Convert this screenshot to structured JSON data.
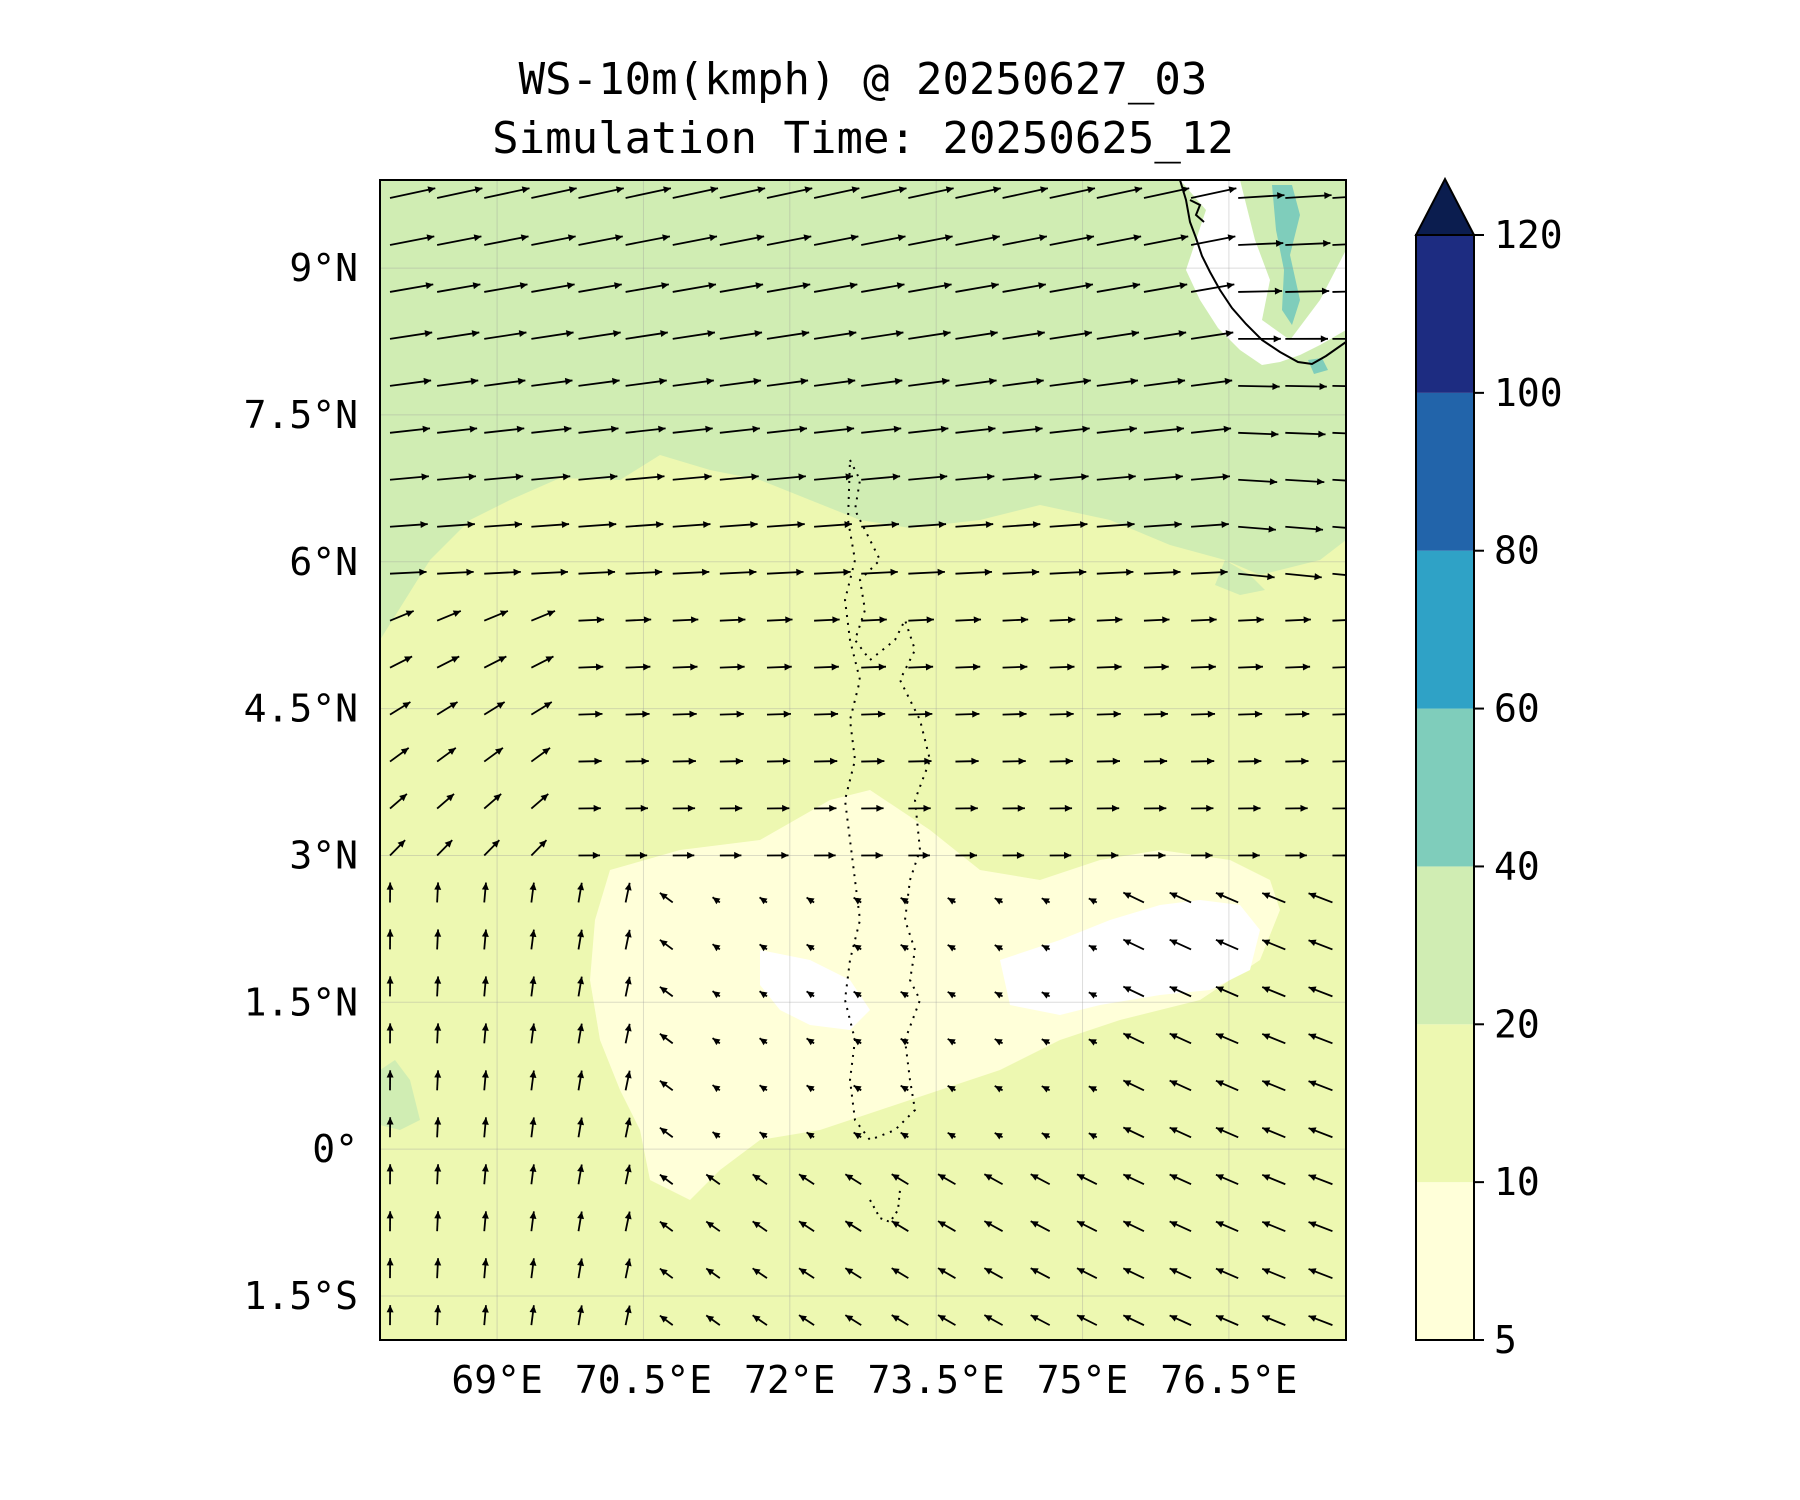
{
  "title": {
    "line1": "WS-10m(kmph) @ 20250627_03",
    "line2": "Simulation Time: 20250625_12"
  },
  "map": {
    "x_range_deg_e": [
      67.8,
      77.7
    ],
    "y_range_deg_n": [
      -1.95,
      9.9
    ],
    "x_ticks": [
      {
        "value": 69,
        "label": "69°E"
      },
      {
        "value": 70.5,
        "label": "70.5°E"
      },
      {
        "value": 72,
        "label": "72°E"
      },
      {
        "value": 73.5,
        "label": "73.5°E"
      },
      {
        "value": 75,
        "label": "75°E"
      },
      {
        "value": 76.5,
        "label": "76.5°E"
      }
    ],
    "y_ticks": [
      {
        "value": 9,
        "label": "9°N"
      },
      {
        "value": 7.5,
        "label": "7.5°N"
      },
      {
        "value": 6,
        "label": "6°N"
      },
      {
        "value": 4.5,
        "label": "4.5°N"
      },
      {
        "value": 3,
        "label": "3°N"
      },
      {
        "value": 1.5,
        "label": "1.5°N"
      },
      {
        "value": 0,
        "label": "0°"
      },
      {
        "value": -1.5,
        "label": "1.5°S"
      }
    ],
    "gridlines": true,
    "features": [
      "Indian coastline (top-right)",
      "Maldives atolls (dotted)",
      "wind vectors"
    ]
  },
  "colorbar": {
    "levels": [
      5,
      10,
      20,
      40,
      60,
      80,
      100,
      120
    ],
    "tick_labels": [
      "5",
      "10",
      "20",
      "40",
      "60",
      "80",
      "100",
      "120"
    ],
    "colors": [
      "#ffffd9",
      "#edf8b1",
      "#d0edb3",
      "#7fcdbb",
      "#2fa2c6",
      "#2264aa",
      "#1d2c81"
    ],
    "extend_color": "#0b1d4f",
    "extend": "max"
  },
  "colors": {
    "band_10_20": "#edf8b1",
    "band_20_40": "#d0edb3",
    "band_5_10": "#ffffd9",
    "band_40_60": "#7fcdbb"
  }
}
